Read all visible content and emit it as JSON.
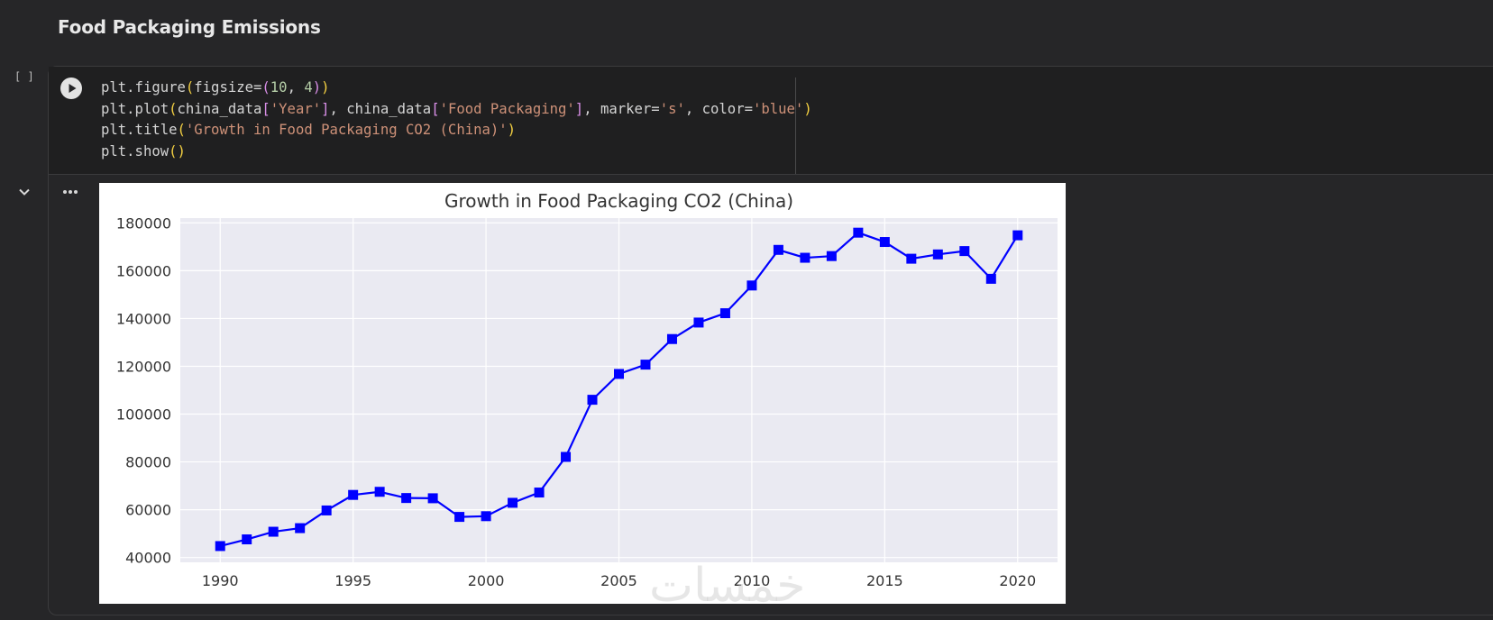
{
  "section": {
    "heading": "Food Packaging Emissions"
  },
  "cell": {
    "execution_count": "[ ]",
    "code_lines": [
      [
        {
          "t": "plt.figure",
          "c": ""
        },
        {
          "t": "(",
          "c": "p1"
        },
        {
          "t": "figsize=",
          "c": ""
        },
        {
          "t": "(",
          "c": "p2"
        },
        {
          "t": "10",
          "c": "num"
        },
        {
          "t": ", ",
          "c": ""
        },
        {
          "t": "4",
          "c": "num"
        },
        {
          "t": ")",
          "c": "p2"
        },
        {
          "t": ")",
          "c": "p1"
        }
      ],
      [
        {
          "t": "plt.plot",
          "c": ""
        },
        {
          "t": "(",
          "c": "p1"
        },
        {
          "t": "china_data",
          "c": ""
        },
        {
          "t": "[",
          "c": "p2"
        },
        {
          "t": "'Year'",
          "c": "str"
        },
        {
          "t": "]",
          "c": "p2"
        },
        {
          "t": ", china_data",
          "c": ""
        },
        {
          "t": "[",
          "c": "p2"
        },
        {
          "t": "'Food Packaging'",
          "c": "str"
        },
        {
          "t": "]",
          "c": "p2"
        },
        {
          "t": ", marker=",
          "c": ""
        },
        {
          "t": "'s'",
          "c": "str"
        },
        {
          "t": ", color=",
          "c": ""
        },
        {
          "t": "'blue'",
          "c": "str"
        },
        {
          "t": ")",
          "c": "p1"
        }
      ],
      [
        {
          "t": "plt.title",
          "c": ""
        },
        {
          "t": "(",
          "c": "p1"
        },
        {
          "t": "'Growth in Food Packaging CO2 (China)'",
          "c": "str"
        },
        {
          "t": ")",
          "c": "p1"
        }
      ],
      [
        {
          "t": "plt.show",
          "c": ""
        },
        {
          "t": "()",
          "c": "p1"
        }
      ]
    ]
  },
  "watermark": "خمسات",
  "colors": {
    "background": "#262628",
    "code_background": "#1f1f20",
    "plot_background": "#eaeaf2",
    "line": "#0000ff"
  },
  "icons": {
    "run": "play-circle-icon",
    "collapse": "chevron-down-icon",
    "menu": "more-horizontal-icon"
  },
  "chart_data": {
    "type": "line",
    "title": "Growth in Food Packaging CO2 (China)",
    "xlabel": "",
    "ylabel": "",
    "marker": "square",
    "x": [
      1990,
      1991,
      1992,
      1993,
      1994,
      1995,
      1996,
      1997,
      1998,
      1999,
      2000,
      2001,
      2002,
      2003,
      2004,
      2005,
      2006,
      2007,
      2008,
      2009,
      2010,
      2011,
      2012,
      2013,
      2014,
      2015,
      2016,
      2017,
      2018,
      2019,
      2020
    ],
    "series": [
      {
        "values": [
          44800,
          47600,
          50800,
          52300,
          59700,
          66200,
          67500,
          64900,
          64800,
          57000,
          57300,
          62900,
          67200,
          82100,
          106000,
          116800,
          120700,
          131400,
          138300,
          142200,
          153800,
          168700,
          165400,
          166100,
          175900,
          172000,
          165000,
          166800,
          168200,
          156600,
          174800
        ]
      }
    ],
    "xlim": [
      1988.5,
      2021.5
    ],
    "ylim": [
      38000,
      182000
    ],
    "xticks": [
      "1990",
      "1995",
      "2000",
      "2005",
      "2010",
      "2015",
      "2020"
    ],
    "yticks": [
      "40000",
      "60000",
      "80000",
      "100000",
      "120000",
      "140000",
      "160000",
      "180000"
    ],
    "grid": true
  }
}
